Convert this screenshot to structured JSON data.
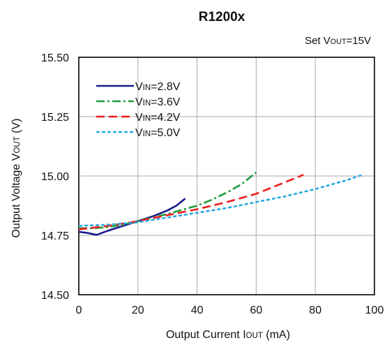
{
  "chart_data": {
    "type": "line",
    "title": "R1200x",
    "subtitle": {
      "prefix": "Set V",
      "sub": "OUT",
      "suffix": "=15V"
    },
    "xlabel": {
      "prefix": "Output Current I",
      "sub": "OUT",
      "suffix": " (mA)"
    },
    "ylabel": {
      "prefix": "Output Voltage V",
      "sub": "OUT",
      "suffix": " (V)"
    },
    "xlim": [
      0,
      100
    ],
    "ylim": [
      14.5,
      15.5
    ],
    "x_ticks": [
      0,
      20,
      40,
      60,
      80,
      100
    ],
    "x_tick_labels": [
      "0",
      "20",
      "40",
      "60",
      "80",
      "100"
    ],
    "y_ticks": [
      14.5,
      14.75,
      15.0,
      15.25,
      15.5
    ],
    "y_tick_labels": [
      "14.50",
      "14.75",
      "15.00",
      "15.25",
      "15.50"
    ],
    "grid": true,
    "legend_position": "top-left",
    "series": [
      {
        "name": {
          "prefix": "V",
          "sub": "IN",
          "suffix": "=2.8V"
        },
        "color": "#1a1a8c",
        "dash": "solid",
        "x": [
          0,
          3,
          6,
          10,
          15,
          20,
          25,
          30,
          33,
          36
        ],
        "y": [
          14.765,
          14.76,
          14.752,
          14.77,
          14.79,
          14.81,
          14.83,
          14.855,
          14.875,
          14.905
        ]
      },
      {
        "name": {
          "prefix": "V",
          "sub": "IN",
          "suffix": "=3.6V"
        },
        "color": "#1e9b3c",
        "dash": "dashdot",
        "x": [
          0,
          5,
          10,
          15,
          20,
          25,
          30,
          35,
          40,
          45,
          50,
          55,
          60
        ],
        "y": [
          14.78,
          14.78,
          14.785,
          14.795,
          14.81,
          14.825,
          14.84,
          14.858,
          14.875,
          14.9,
          14.93,
          14.965,
          15.015
        ]
      },
      {
        "name": {
          "prefix": "V",
          "sub": "IN",
          "suffix": "=4.2V"
        },
        "color": "#ee1c1c",
        "dash": "dashed",
        "x": [
          0,
          10,
          20,
          30,
          40,
          50,
          60,
          70,
          76
        ],
        "y": [
          14.775,
          14.79,
          14.81,
          14.835,
          14.86,
          14.89,
          14.925,
          14.975,
          15.005
        ]
      },
      {
        "name": {
          "prefix": "V",
          "sub": "IN",
          "suffix": "=5.0V"
        },
        "color": "#29a8e0",
        "dash": "dotted",
        "x": [
          0,
          10,
          20,
          30,
          40,
          50,
          60,
          70,
          80,
          90,
          96
        ],
        "y": [
          14.79,
          14.795,
          14.805,
          14.825,
          14.845,
          14.865,
          14.89,
          14.915,
          14.945,
          14.98,
          15.005
        ]
      }
    ]
  }
}
